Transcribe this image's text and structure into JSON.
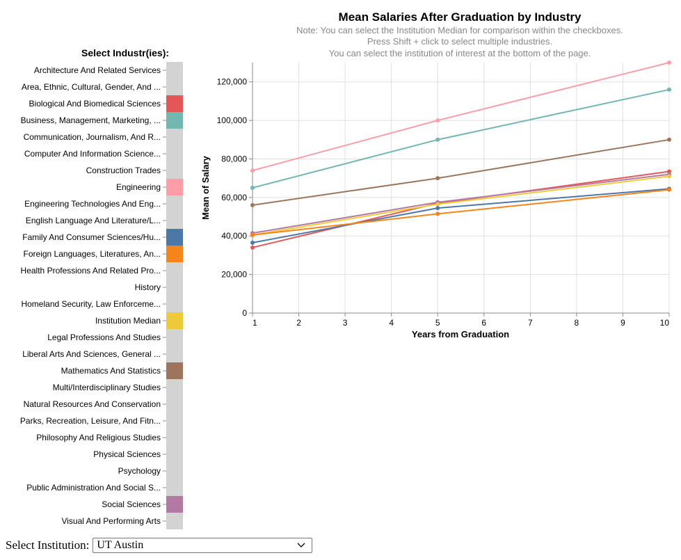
{
  "colors": {
    "inactive": "#d3d3d3",
    "grid": "#e0e0e0",
    "axis": "#888888"
  },
  "legend": {
    "title": "Select Industr(ies):",
    "items": [
      {
        "label": "Architecture And Related Services",
        "color": null
      },
      {
        "label": "Area, Ethnic, Cultural, Gender, And ...",
        "color": null
      },
      {
        "label": "Biological And Biomedical Sciences",
        "color": "#e45756"
      },
      {
        "label": "Business, Management, Marketing, ...",
        "color": "#72b7b2"
      },
      {
        "label": "Communication, Journalism, And R...",
        "color": null
      },
      {
        "label": "Computer And Information Science...",
        "color": null
      },
      {
        "label": "Construction Trades",
        "color": null
      },
      {
        "label": "Engineering",
        "color": "#ff9da6"
      },
      {
        "label": "Engineering Technologies And Eng...",
        "color": null
      },
      {
        "label": "English Language And Literature/L...",
        "color": null
      },
      {
        "label": "Family And Consumer Sciences/Hu...",
        "color": "#4c78a8"
      },
      {
        "label": "Foreign Languages, Literatures, An...",
        "color": "#f58518"
      },
      {
        "label": "Health Professions And Related Pro...",
        "color": null
      },
      {
        "label": "History",
        "color": null
      },
      {
        "label": "Homeland Security, Law Enforceme...",
        "color": null
      },
      {
        "label": "Institution Median",
        "color": "#eeca3b"
      },
      {
        "label": "Legal Professions And Studies",
        "color": null
      },
      {
        "label": "Liberal Arts And Sciences, General ...",
        "color": null
      },
      {
        "label": "Mathematics And Statistics",
        "color": "#9d755d"
      },
      {
        "label": "Multi/Interdisciplinary Studies",
        "color": null
      },
      {
        "label": "Natural Resources And Conservation",
        "color": null
      },
      {
        "label": "Parks, Recreation, Leisure, And Fitn...",
        "color": null
      },
      {
        "label": "Philosophy And Religious Studies",
        "color": null
      },
      {
        "label": "Physical Sciences",
        "color": null
      },
      {
        "label": "Psychology",
        "color": null
      },
      {
        "label": "Public Administration And Social S...",
        "color": null
      },
      {
        "label": "Social Sciences",
        "color": "#b279a2"
      },
      {
        "label": "Visual And Performing Arts",
        "color": null
      }
    ]
  },
  "chart_data": {
    "type": "line",
    "title": "Mean Salaries After Graduation by Industry",
    "subtitle": [
      "Note: You can select the Institution Median for comparison within the checkboxes.",
      "Press Shift + click to select multiple industries.",
      "You can select the institution of interest at the bottom of the page."
    ],
    "xlabel": "Years from Graduation",
    "ylabel": "Mean of Salary",
    "xlim": [
      1,
      10
    ],
    "ylim": [
      0,
      130000
    ],
    "xticks": [
      1,
      2,
      3,
      4,
      5,
      6,
      7,
      8,
      9,
      10
    ],
    "yticks": [
      0,
      20000,
      40000,
      60000,
      80000,
      100000,
      120000
    ],
    "ytick_labels": [
      "0",
      "20,000",
      "40,000",
      "60,000",
      "80,000",
      "100,000",
      "120,000"
    ],
    "grid": true,
    "x": [
      1,
      5,
      10
    ],
    "series": [
      {
        "name": "Engineering",
        "color": "#ff9da6",
        "values": [
          74000,
          100000,
          130000
        ]
      },
      {
        "name": "Business, Management, Marketing, ...",
        "color": "#72b7b2",
        "values": [
          65000,
          90000,
          116000
        ]
      },
      {
        "name": "Mathematics And Statistics",
        "color": "#9d755d",
        "values": [
          56000,
          70000,
          90000
        ]
      },
      {
        "name": "Biological And Biomedical Sciences",
        "color": "#e45756",
        "values": [
          34000,
          57000,
          73500
        ]
      },
      {
        "name": "Social Sciences",
        "color": "#b279a2",
        "values": [
          41500,
          57500,
          72000
        ]
      },
      {
        "name": "Institution Median",
        "color": "#eeca3b",
        "values": [
          40500,
          56500,
          71000
        ]
      },
      {
        "name": "Family And Consumer Sciences/Hu...",
        "color": "#4c78a8",
        "values": [
          36500,
          54500,
          64500
        ]
      },
      {
        "name": "Foreign Languages, Literatures, An...",
        "color": "#f58518",
        "values": [
          40500,
          51500,
          64000
        ]
      }
    ]
  },
  "institution": {
    "label": "Select Institution:",
    "value": "UT Austin"
  }
}
